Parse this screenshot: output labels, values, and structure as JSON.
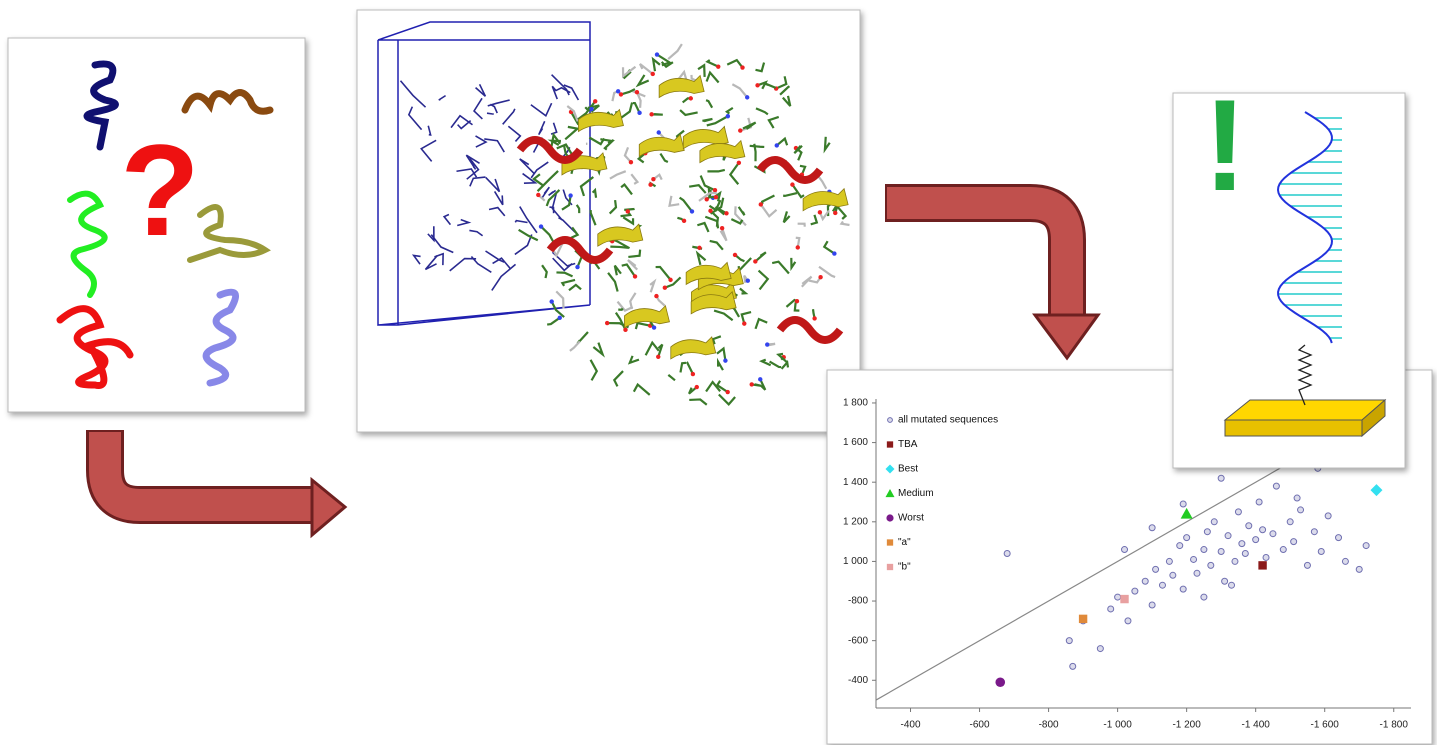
{
  "left_panel": {
    "symbol": "?"
  },
  "right_panel": {
    "symbol": "!"
  },
  "scatter": {
    "type": "scatter",
    "xlim": [
      300,
      1850
    ],
    "ylim": [
      260,
      1820
    ],
    "xticks": [
      {
        "value": 400,
        "label": "-400"
      },
      {
        "value": 600,
        "label": "-600"
      },
      {
        "value": 800,
        "label": "-800"
      },
      {
        "value": 1000,
        "label": "-1 000"
      },
      {
        "value": 1200,
        "label": "-1 200"
      },
      {
        "value": 1400,
        "label": "-1 400"
      },
      {
        "value": 1600,
        "label": "-1 600"
      },
      {
        "value": 1800,
        "label": "-1 800"
      }
    ],
    "yticks": [
      {
        "value": 400,
        "label": "-400"
      },
      {
        "value": 600,
        "label": "-600"
      },
      {
        "value": 800,
        "label": "-800"
      },
      {
        "value": 1000,
        "label": "1 000"
      },
      {
        "value": 1200,
        "label": "1 200"
      },
      {
        "value": 1400,
        "label": "1 400"
      },
      {
        "value": 1600,
        "label": "1 600"
      },
      {
        "value": 1800,
        "label": "1 800"
      }
    ],
    "series": [
      {
        "name": "all mutated sequences",
        "color": "#6f6fb0",
        "marker": "circle-open",
        "x": [
          680,
          860,
          900,
          950,
          980,
          1000,
          1030,
          1050,
          1080,
          1100,
          1110,
          1130,
          1150,
          1160,
          1180,
          1190,
          1200,
          1220,
          1230,
          1250,
          1260,
          1270,
          1280,
          1300,
          1310,
          1320,
          1340,
          1350,
          1360,
          1370,
          1380,
          1400,
          1410,
          1430,
          1450,
          1460,
          1480,
          1500,
          1510,
          1530,
          1550,
          1570,
          1590,
          1610,
          1640,
          1660,
          1700,
          1720,
          1190,
          1250,
          1330,
          1420,
          1520,
          1300,
          1100,
          870,
          1020,
          1580
        ],
        "y": [
          1040,
          600,
          700,
          560,
          760,
          820,
          700,
          850,
          900,
          780,
          960,
          880,
          1000,
          930,
          1080,
          860,
          1120,
          1010,
          940,
          1060,
          1150,
          980,
          1200,
          1050,
          900,
          1130,
          1000,
          1250,
          1090,
          1040,
          1180,
          1110,
          1300,
          1020,
          1140,
          1380,
          1060,
          1200,
          1100,
          1260,
          980,
          1150,
          1050,
          1230,
          1120,
          1000,
          960,
          1080,
          1290,
          820,
          880,
          1160,
          1320,
          1420,
          1170,
          470,
          1060,
          1470
        ]
      },
      {
        "name": "TBA",
        "color": "#8b1a1a",
        "marker": "square",
        "x": [
          1420
        ],
        "y": [
          980
        ]
      },
      {
        "name": "Best",
        "color": "#33e0f0",
        "marker": "diamond",
        "x": [
          1750
        ],
        "y": [
          1360
        ]
      },
      {
        "name": "Medium",
        "color": "#22cc22",
        "marker": "triangle",
        "x": [
          1200
        ],
        "y": [
          1240
        ]
      },
      {
        "name": "Worst",
        "color": "#7a1a8a",
        "marker": "circle",
        "x": [
          660
        ],
        "y": [
          390
        ]
      },
      {
        "name": "\"a\"",
        "color": "#e08a3a",
        "marker": "square",
        "x": [
          900
        ],
        "y": [
          710
        ]
      },
      {
        "name": "\"b\"",
        "color": "#e8a0a0",
        "marker": "square",
        "x": [
          1020
        ],
        "y": [
          810
        ]
      }
    ]
  }
}
